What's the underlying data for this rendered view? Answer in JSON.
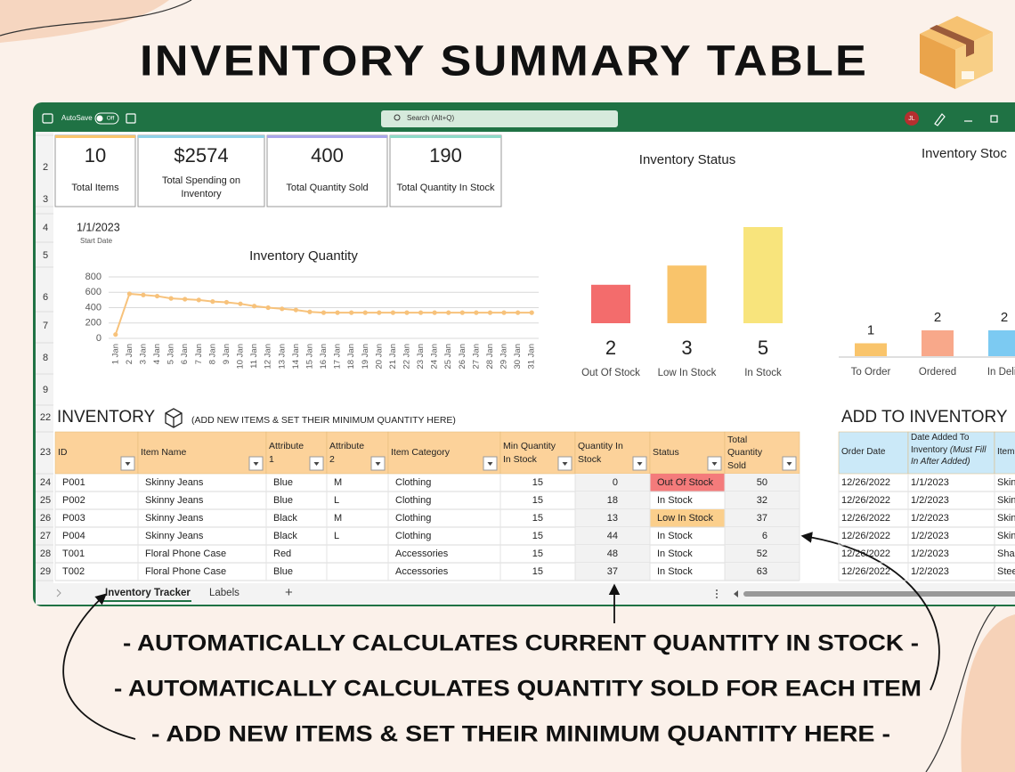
{
  "title": "INVENTORY SUMMARY TABLE",
  "window": {
    "autosave": "AutoSave",
    "toggle": "Off",
    "search": "Search (Alt+Q)",
    "user": "JL"
  },
  "row_numbers": [
    2,
    3,
    4,
    5,
    6,
    7,
    8,
    9,
    22,
    23,
    24,
    25,
    26,
    27,
    28,
    29
  ],
  "kpis": [
    {
      "value": 10,
      "label": "Total Items"
    },
    {
      "value": "$2574",
      "label": "Total Spending on Inventory"
    },
    {
      "value": 400,
      "label": "Total Quantity Sold"
    },
    {
      "value": 190,
      "label": "Total Quantity In Stock"
    }
  ],
  "start_date": {
    "value": "1/1/2023",
    "label": "Start Date"
  },
  "chart_data": [
    {
      "type": "line",
      "title": "Inventory Quantity",
      "categories": [
        "1 Jan",
        "2 Jan",
        "3 Jan",
        "4 Jan",
        "5 Jan",
        "6 Jan",
        "7 Jan",
        "8 Jan",
        "9 Jan",
        "10 Jan",
        "11 Jan",
        "12 Jan",
        "13 Jan",
        "14 Jan",
        "15 Jan",
        "16 Jan",
        "17 Jan",
        "18 Jan",
        "19 Jan",
        "20 Jan",
        "21 Jan",
        "22 Jan",
        "23 Jan",
        "24 Jan",
        "25 Jan",
        "26 Jan",
        "27 Jan",
        "28 Jan",
        "29 Jan",
        "30 Jan",
        "31 Jan"
      ],
      "values": [
        50,
        580,
        565,
        550,
        520,
        510,
        500,
        480,
        470,
        450,
        420,
        400,
        385,
        370,
        345,
        335,
        335,
        335,
        335,
        335,
        335,
        335,
        335,
        335,
        335,
        335,
        335,
        335,
        335,
        335,
        335
      ],
      "color": "#f7c27b",
      "ylim": [
        0,
        800
      ],
      "yticks": [
        0,
        200,
        400,
        600,
        800
      ],
      "grid": true
    },
    {
      "type": "bar",
      "title": "Inventory Status",
      "categories": [
        "Out Of Stock",
        "Low In Stock",
        "In Stock"
      ],
      "values": [
        2,
        3,
        5
      ],
      "colors": [
        "#f36c6c",
        "#f9c46b",
        "#f8e47c"
      ]
    },
    {
      "type": "bar",
      "title": "Inventory Stoc",
      "categories": [
        "To Order",
        "Ordered",
        "In Deliv"
      ],
      "values": [
        1,
        2,
        2
      ],
      "colors": [
        "#f9c46b",
        "#f8a88a",
        "#7ccaf2"
      ]
    }
  ],
  "inventory": {
    "title": "INVENTORY",
    "note": "(ADD NEW ITEMS & SET THEIR MINIMUM QUANTITY HERE)",
    "columns": [
      "ID",
      "Item Name",
      "Attribute 1",
      "Attribute 2",
      "Item Category",
      "Min Quantity In Stock",
      "Quantity In Stock",
      "Status",
      "Total Quantity Sold"
    ],
    "rows": [
      [
        "P001",
        "Skinny Jeans",
        "Blue",
        "M",
        "Clothing",
        15,
        0,
        "Out Of Stock",
        50
      ],
      [
        "P002",
        "Skinny Jeans",
        "Blue",
        "L",
        "Clothing",
        15,
        18,
        "In Stock",
        32
      ],
      [
        "P003",
        "Skinny Jeans",
        "Black",
        "M",
        "Clothing",
        15,
        13,
        "Low In Stock",
        37
      ],
      [
        "P004",
        "Skinny Jeans",
        "Black",
        "L",
        "Clothing",
        15,
        44,
        "In Stock",
        6
      ],
      [
        "T001",
        "Floral Phone Case",
        "Red",
        null,
        "Accessories",
        15,
        48,
        "In Stock",
        52
      ],
      [
        "T002",
        "Floral Phone Case",
        "Blue",
        null,
        "Accessories",
        15,
        37,
        "In Stock",
        63
      ]
    ],
    "status_fills": [
      "#f47b7b",
      null,
      "#fbcf8c",
      null,
      null,
      null
    ]
  },
  "add_to_inventory": {
    "title": "ADD TO INVENTORY",
    "columns": [
      {
        "label": "Order Date"
      },
      {
        "label": "Date Added To Inventory",
        "note": "(Must Fill In After Added)"
      },
      {
        "label": "Item"
      }
    ],
    "rows": [
      [
        "12/26/2022",
        "1/1/2023",
        "Skin"
      ],
      [
        "12/26/2022",
        "1/2/2023",
        "Skin"
      ],
      [
        "12/26/2022",
        "1/2/2023",
        "Skin"
      ],
      [
        "12/26/2022",
        "1/2/2023",
        "Skin"
      ],
      [
        "12/26/2022",
        "1/2/2023",
        "Shar"
      ],
      [
        "12/26/2022",
        "1/2/2023",
        "Stee"
      ]
    ]
  },
  "sheet_tabs": [
    "Inventory Tracker",
    "Labels",
    "+"
  ],
  "captions": [
    "- AUTOMATICALLY CALCULATES CURRENT QUANTITY IN STOCK -",
    "- AUTOMATICALLY CALCULATES QUANTITY SOLD FOR EACH ITEM",
    "- ADD NEW ITEMS & SET THEIR MINIMUM QUANTITY HERE -"
  ]
}
